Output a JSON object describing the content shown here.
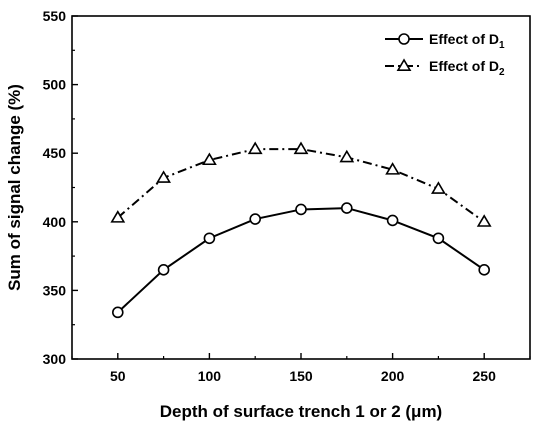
{
  "chart_data": {
    "type": "line",
    "title": "",
    "xlabel": "Depth of surface trench 1 or 2 (μm)",
    "ylabel": "Sum of signal change (%)",
    "x": [
      50,
      75,
      100,
      125,
      150,
      175,
      200,
      225,
      250
    ],
    "xlim": [
      25,
      275
    ],
    "ylim": [
      300,
      550
    ],
    "xticks": [
      50,
      100,
      150,
      200,
      250
    ],
    "yticks": [
      300,
      350,
      400,
      450,
      500,
      550
    ],
    "grid": false,
    "legend_position": "top-right",
    "series": [
      {
        "name": "Effect of D",
        "subscript": "1",
        "marker": "circle",
        "line_style": "solid",
        "color": "#000000",
        "values": [
          334,
          365,
          388,
          402,
          409,
          410,
          401,
          388,
          365
        ]
      },
      {
        "name": "Effect of D",
        "subscript": "2",
        "marker": "triangle",
        "line_style": "dash-dot",
        "color": "#000000",
        "values": [
          403,
          432,
          445,
          453,
          453,
          447,
          438,
          424,
          400
        ]
      }
    ]
  }
}
